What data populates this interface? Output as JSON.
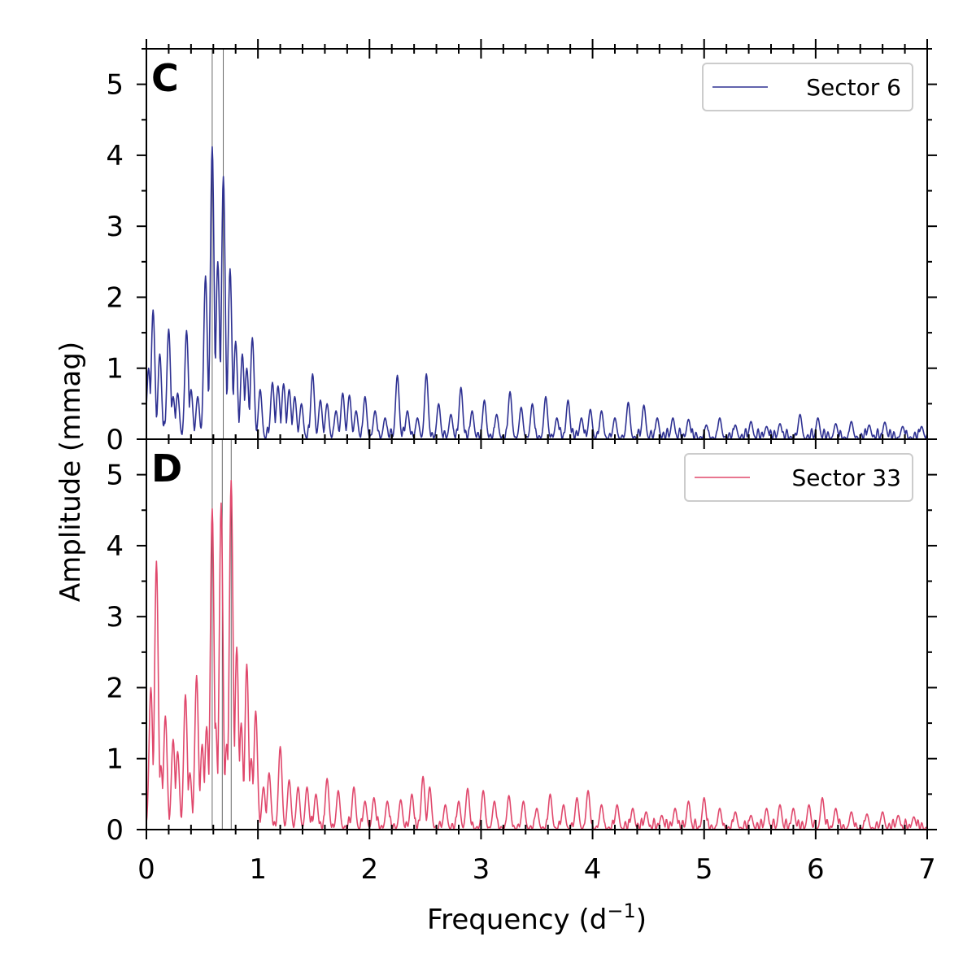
{
  "figure": {
    "xlabel_main": "Frequency (d",
    "xlabel_sup": "−1",
    "xlabel_close": ")",
    "ylabel": "Amplitude (mmag)"
  },
  "chart_data": [
    {
      "type": "line",
      "panel_label": "C",
      "legend_label": "Sector 6",
      "color": "#2e3192",
      "xlim": [
        0,
        7
      ],
      "ylim": [
        0,
        5.5
      ],
      "x_ticks": [
        0,
        1,
        2,
        3,
        4,
        5,
        6,
        7
      ],
      "y_ticks": [
        0,
        1,
        2,
        3,
        4,
        5
      ],
      "marker_lines_x": [
        0.59,
        0.69
      ],
      "peaks": [
        [
          0.02,
          1.0
        ],
        [
          0.06,
          1.82
        ],
        [
          0.12,
          1.2
        ],
        [
          0.2,
          1.55
        ],
        [
          0.24,
          0.6
        ],
        [
          0.28,
          0.65
        ],
        [
          0.36,
          1.53
        ],
        [
          0.4,
          0.7
        ],
        [
          0.46,
          0.6
        ],
        [
          0.53,
          2.3
        ],
        [
          0.59,
          4.12
        ],
        [
          0.64,
          2.5
        ],
        [
          0.69,
          3.7
        ],
        [
          0.75,
          2.4
        ],
        [
          0.8,
          1.38
        ],
        [
          0.86,
          1.2
        ],
        [
          0.9,
          1.0
        ],
        [
          0.95,
          1.43
        ],
        [
          1.02,
          0.7
        ],
        [
          1.13,
          0.8
        ],
        [
          1.18,
          0.75
        ],
        [
          1.23,
          0.78
        ],
        [
          1.28,
          0.7
        ],
        [
          1.33,
          0.6
        ],
        [
          1.39,
          0.5
        ],
        [
          1.49,
          0.92
        ],
        [
          1.56,
          0.55
        ],
        [
          1.62,
          0.5
        ],
        [
          1.7,
          0.4
        ],
        [
          1.76,
          0.65
        ],
        [
          1.82,
          0.62
        ],
        [
          1.88,
          0.4
        ],
        [
          1.96,
          0.6
        ],
        [
          2.05,
          0.4
        ],
        [
          2.14,
          0.3
        ],
        [
          2.25,
          0.9
        ],
        [
          2.34,
          0.4
        ],
        [
          2.43,
          0.3
        ],
        [
          2.51,
          0.92
        ],
        [
          2.62,
          0.5
        ],
        [
          2.73,
          0.35
        ],
        [
          2.82,
          0.73
        ],
        [
          2.92,
          0.4
        ],
        [
          3.03,
          0.55
        ],
        [
          3.14,
          0.35
        ],
        [
          3.26,
          0.67
        ],
        [
          3.36,
          0.45
        ],
        [
          3.46,
          0.5
        ],
        [
          3.58,
          0.6
        ],
        [
          3.68,
          0.3
        ],
        [
          3.78,
          0.55
        ],
        [
          3.9,
          0.3
        ],
        [
          3.98,
          0.42
        ],
        [
          4.08,
          0.4
        ],
        [
          4.2,
          0.3
        ],
        [
          4.32,
          0.52
        ],
        [
          4.46,
          0.48
        ],
        [
          4.58,
          0.3
        ],
        [
          4.72,
          0.3
        ],
        [
          4.86,
          0.28
        ],
        [
          5.02,
          0.2
        ],
        [
          5.14,
          0.3
        ],
        [
          5.28,
          0.2
        ],
        [
          5.42,
          0.25
        ],
        [
          5.56,
          0.18
        ],
        [
          5.68,
          0.22
        ],
        [
          5.86,
          0.35
        ],
        [
          6.02,
          0.3
        ],
        [
          6.18,
          0.22
        ],
        [
          6.32,
          0.25
        ],
        [
          6.48,
          0.2
        ],
        [
          6.62,
          0.24
        ],
        [
          6.78,
          0.18
        ],
        [
          6.95,
          0.18
        ]
      ]
    },
    {
      "type": "line",
      "panel_label": "D",
      "legend_label": "Sector 33",
      "color": "#e0486c",
      "xlim": [
        0,
        7
      ],
      "ylim": [
        0,
        5.5
      ],
      "x_ticks": [
        0,
        1,
        2,
        3,
        4,
        5,
        6,
        7
      ],
      "y_ticks": [
        0,
        1,
        2,
        3,
        4,
        5
      ],
      "marker_lines_x": [
        0.59,
        0.68,
        0.76
      ],
      "peaks": [
        [
          0.04,
          2.0
        ],
        [
          0.09,
          3.78
        ],
        [
          0.13,
          0.9
        ],
        [
          0.17,
          1.6
        ],
        [
          0.24,
          1.27
        ],
        [
          0.28,
          1.1
        ],
        [
          0.35,
          1.9
        ],
        [
          0.39,
          0.8
        ],
        [
          0.45,
          2.17
        ],
        [
          0.5,
          1.2
        ],
        [
          0.54,
          1.45
        ],
        [
          0.59,
          4.52
        ],
        [
          0.62,
          1.5
        ],
        [
          0.67,
          4.6
        ],
        [
          0.72,
          1.2
        ],
        [
          0.76,
          4.92
        ],
        [
          0.81,
          2.57
        ],
        [
          0.85,
          1.5
        ],
        [
          0.9,
          2.33
        ],
        [
          0.94,
          1.0
        ],
        [
          0.98,
          1.67
        ],
        [
          1.05,
          0.6
        ],
        [
          1.1,
          0.8
        ],
        [
          1.2,
          1.17
        ],
        [
          1.28,
          0.7
        ],
        [
          1.36,
          0.6
        ],
        [
          1.44,
          0.6
        ],
        [
          1.52,
          0.5
        ],
        [
          1.62,
          0.72
        ],
        [
          1.72,
          0.55
        ],
        [
          1.86,
          0.6
        ],
        [
          1.96,
          0.4
        ],
        [
          2.04,
          0.45
        ],
        [
          2.16,
          0.4
        ],
        [
          2.28,
          0.42
        ],
        [
          2.38,
          0.5
        ],
        [
          2.48,
          0.75
        ],
        [
          2.54,
          0.6
        ],
        [
          2.68,
          0.35
        ],
        [
          2.8,
          0.4
        ],
        [
          2.88,
          0.58
        ],
        [
          3.02,
          0.55
        ],
        [
          3.12,
          0.4
        ],
        [
          3.25,
          0.48
        ],
        [
          3.38,
          0.4
        ],
        [
          3.5,
          0.3
        ],
        [
          3.62,
          0.5
        ],
        [
          3.74,
          0.35
        ],
        [
          3.86,
          0.45
        ],
        [
          3.96,
          0.55
        ],
        [
          4.08,
          0.35
        ],
        [
          4.22,
          0.35
        ],
        [
          4.36,
          0.3
        ],
        [
          4.48,
          0.25
        ],
        [
          4.62,
          0.2
        ],
        [
          4.74,
          0.3
        ],
        [
          4.86,
          0.4
        ],
        [
          5.0,
          0.45
        ],
        [
          5.14,
          0.3
        ],
        [
          5.28,
          0.25
        ],
        [
          5.42,
          0.2
        ],
        [
          5.56,
          0.3
        ],
        [
          5.68,
          0.35
        ],
        [
          5.8,
          0.3
        ],
        [
          5.94,
          0.35
        ],
        [
          6.06,
          0.45
        ],
        [
          6.18,
          0.3
        ],
        [
          6.32,
          0.25
        ],
        [
          6.46,
          0.22
        ],
        [
          6.6,
          0.25
        ],
        [
          6.74,
          0.2
        ],
        [
          6.88,
          0.18
        ]
      ]
    }
  ]
}
